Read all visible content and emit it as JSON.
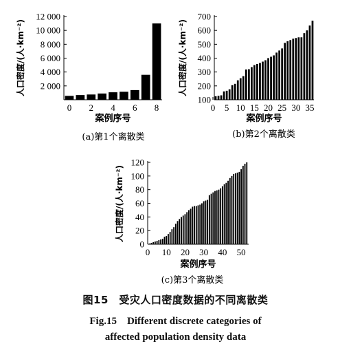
{
  "chart_data": [
    {
      "type": "bar",
      "caption": "(a)第1个离散类",
      "xlabel": "案例序号",
      "ylabel": "人口密度/(人·km⁻²)",
      "x": [
        0,
        1,
        2,
        3,
        4,
        5,
        6,
        7,
        8
      ],
      "values": [
        560,
        680,
        760,
        900,
        1080,
        1150,
        1400,
        3600,
        11000
      ],
      "xlim": [
        -0.5,
        8.5
      ],
      "ylim": [
        0,
        12000
      ],
      "xticks": [
        0,
        2,
        4,
        6,
        8
      ],
      "yticks": [
        2000,
        4000,
        6000,
        8000,
        10000,
        12000
      ],
      "ytick_labels": [
        "2 000",
        "4 000",
        "6 000",
        "8 000",
        "10 000",
        "12 000"
      ]
    },
    {
      "type": "bar",
      "caption": "(b)第2个离散类",
      "xlabel": "案例序号",
      "ylabel": "人口密度/(人·km⁻²)",
      "x": [
        1,
        2,
        3,
        4,
        5,
        6,
        7,
        8,
        9,
        10,
        11,
        12,
        13,
        14,
        15,
        16,
        17,
        18,
        19,
        20,
        21,
        22,
        23,
        24,
        25,
        26,
        27,
        28,
        29,
        30,
        31,
        32,
        33,
        34,
        35,
        36
      ],
      "values": [
        125,
        128,
        132,
        160,
        165,
        175,
        205,
        215,
        240,
        255,
        270,
        318,
        320,
        335,
        350,
        358,
        365,
        375,
        385,
        400,
        410,
        420,
        440,
        455,
        470,
        510,
        522,
        530,
        540,
        545,
        550,
        550,
        580,
        600,
        635,
        670
      ],
      "xlim": [
        0.5,
        36.5
      ],
      "ylim": [
        100,
        700
      ],
      "xticks": [
        0,
        5,
        10,
        15,
        20,
        25,
        30,
        35
      ],
      "yticks": [
        100,
        200,
        300,
        400,
        500,
        600,
        700
      ]
    },
    {
      "type": "bar",
      "caption": "(c)第3个离散类",
      "xlabel": "案例序号",
      "ylabel": "人口密度/(人·km⁻²)",
      "x": [
        1,
        2,
        3,
        4,
        5,
        6,
        7,
        8,
        9,
        10,
        11,
        12,
        13,
        14,
        15,
        16,
        17,
        18,
        19,
        20,
        21,
        22,
        23,
        24,
        25,
        26,
        27,
        28,
        29,
        30,
        31,
        32,
        33,
        34,
        35,
        36,
        37,
        38,
        39,
        40,
        41,
        42,
        43,
        44,
        45,
        46,
        47,
        48,
        49,
        50,
        51,
        52,
        53
      ],
      "values": [
        1,
        2,
        3,
        4,
        5,
        6,
        7,
        8,
        11,
        12,
        15,
        18,
        22,
        25,
        30,
        34,
        37,
        40,
        42,
        44,
        47,
        50,
        52,
        55,
        56,
        56,
        57,
        58,
        60,
        63,
        64,
        65,
        72,
        74,
        76,
        78,
        79,
        80,
        82,
        85,
        88,
        90,
        93,
        97,
        100,
        103,
        104,
        105,
        106,
        110,
        115,
        118,
        120
      ],
      "xlim": [
        0,
        54
      ],
      "ylim": [
        0,
        120
      ],
      "xticks": [
        0,
        10,
        20,
        30,
        40,
        50
      ],
      "yticks": [
        0,
        20,
        40,
        60,
        80,
        100,
        120
      ]
    }
  ],
  "figure_caption_zh": "图15　受灾人口密度数据的不同离散类",
  "figure_caption_en_line1": "Fig.15　Different discrete categories of",
  "figure_caption_en_line2": "affected population density data"
}
